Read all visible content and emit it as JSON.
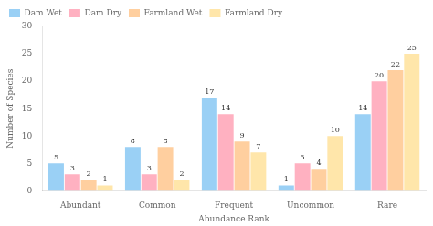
{
  "chart_data": {
    "type": "bar",
    "categories": [
      "Abundant",
      "Common",
      "Frequent",
      "Uncommon",
      "Rare"
    ],
    "series": [
      {
        "name": "Dam Wet",
        "values": [
          5,
          8,
          17,
          1,
          14
        ]
      },
      {
        "name": "Dam Dry",
        "values": [
          3,
          3,
          14,
          5,
          20
        ]
      },
      {
        "name": "Farmland Wet",
        "values": [
          2,
          8,
          9,
          4,
          22
        ]
      },
      {
        "name": "Farmland Dry",
        "values": [
          1,
          2,
          7,
          10,
          25
        ]
      }
    ],
    "xlabel": "Abundance Rank",
    "ylabel": "Number of Species",
    "ylim": [
      0,
      30
    ],
    "yticks": [
      0,
      5,
      10,
      15,
      20,
      25,
      30
    ],
    "grid": false,
    "legend": "upper left",
    "data_labels": true
  }
}
